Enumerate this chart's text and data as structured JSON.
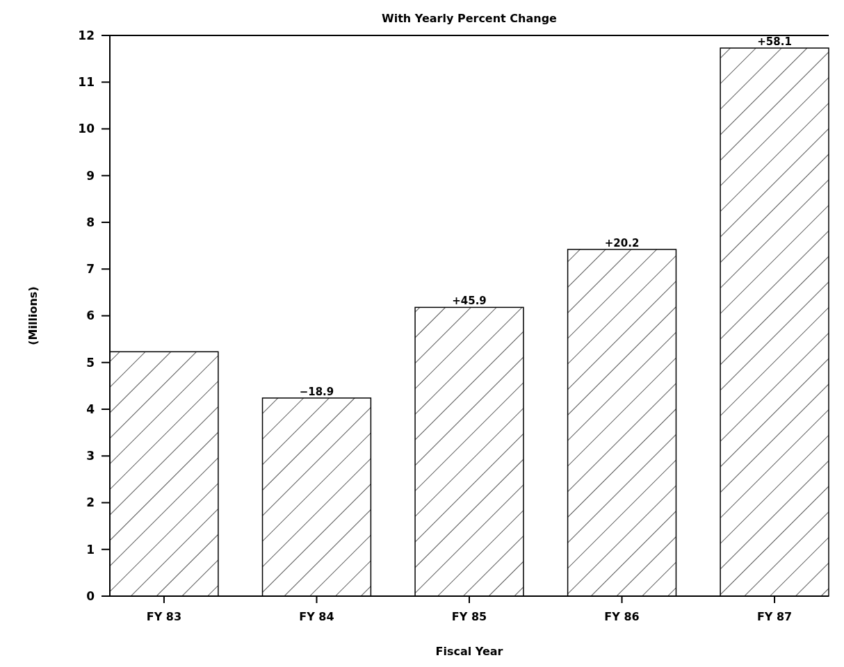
{
  "chart_data": {
    "type": "bar",
    "title": "With Yearly Percent Change",
    "xlabel": "Fiscal Year",
    "ylabel": "(Millions)",
    "categories": [
      "FY 83",
      "FY 84",
      "FY 85",
      "FY 86",
      "FY 87"
    ],
    "values": [
      5.23,
      4.24,
      6.18,
      7.42,
      11.73
    ],
    "annotations": [
      {
        "text": "−18.9",
        "x": "FY 84",
        "y": 4.24
      },
      {
        "text": "+45.9",
        "x": "FY 85",
        "y": 6.18
      },
      {
        "text": "+20.2",
        "x": "FY 86",
        "y": 7.42
      },
      {
        "text": "+58.1",
        "x": "FY 87",
        "y": 11.73
      }
    ],
    "color": "#000000",
    "ylim": [
      0,
      12
    ],
    "yticks": [
      0,
      1,
      2,
      3,
      4,
      5,
      6,
      7,
      8,
      9,
      10,
      11,
      12
    ],
    "grid": false
  }
}
